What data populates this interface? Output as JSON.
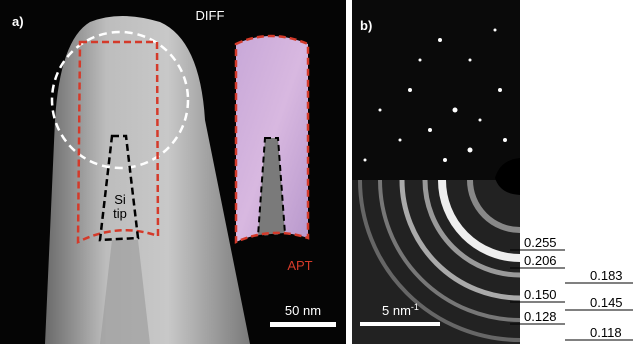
{
  "panel_a": {
    "label": "a)",
    "diff_label": "DIFF",
    "si_tip_label": [
      "Si",
      "tip"
    ],
    "apt_label": "APT",
    "scale_bar": "50 nm"
  },
  "panel_b": {
    "label": "b)",
    "scale_bar": {
      "text": "5 nm",
      "superscript": "-1"
    },
    "d_spacings": [
      "0.255",
      "0.206",
      "0.183",
      "0.150",
      "0.145",
      "0.128",
      "0.118"
    ]
  }
}
